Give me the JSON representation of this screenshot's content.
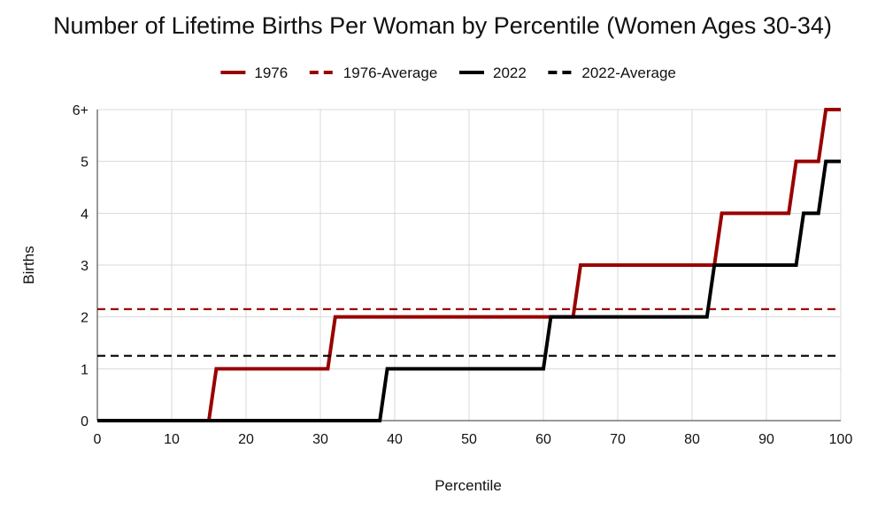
{
  "chart_data": {
    "type": "line",
    "title": "Number of Lifetime Births Per Woman by Percentile (Women Ages 30-34)",
    "xlabel": "Percentile",
    "ylabel": "Births",
    "xlim": [
      0,
      100
    ],
    "ylim": [
      0,
      6
    ],
    "x_ticks": [
      "0",
      "10",
      "20",
      "30",
      "40",
      "50",
      "60",
      "70",
      "80",
      "90",
      "100"
    ],
    "y_ticks": [
      "0",
      "1",
      "2",
      "3",
      "4",
      "5",
      "6+"
    ],
    "grid": true,
    "legend_position": "top",
    "series": [
      {
        "name": "1976",
        "color": "#990000",
        "dash": "solid",
        "points": [
          [
            0,
            0
          ],
          [
            15,
            0
          ],
          [
            16,
            1
          ],
          [
            31,
            1
          ],
          [
            32,
            2
          ],
          [
            64,
            2
          ],
          [
            65,
            3
          ],
          [
            83,
            3
          ],
          [
            84,
            4
          ],
          [
            93,
            4
          ],
          [
            94,
            5
          ],
          [
            97,
            5
          ],
          [
            98,
            6
          ],
          [
            100,
            6
          ]
        ]
      },
      {
        "name": "1976-Average",
        "color": "#990000",
        "dash": "dashed",
        "points": [
          [
            0,
            2.15
          ],
          [
            100,
            2.15
          ]
        ]
      },
      {
        "name": "2022",
        "color": "#000000",
        "dash": "solid",
        "points": [
          [
            0,
            0
          ],
          [
            38,
            0
          ],
          [
            39,
            1
          ],
          [
            60,
            1
          ],
          [
            61,
            2
          ],
          [
            82,
            2
          ],
          [
            83,
            3
          ],
          [
            94,
            3
          ],
          [
            95,
            4
          ],
          [
            97,
            4
          ],
          [
            98,
            5
          ],
          [
            100,
            5
          ]
        ]
      },
      {
        "name": "2022-Average",
        "color": "#000000",
        "dash": "dashed",
        "points": [
          [
            0,
            1.25
          ],
          [
            100,
            1.25
          ]
        ]
      }
    ]
  }
}
